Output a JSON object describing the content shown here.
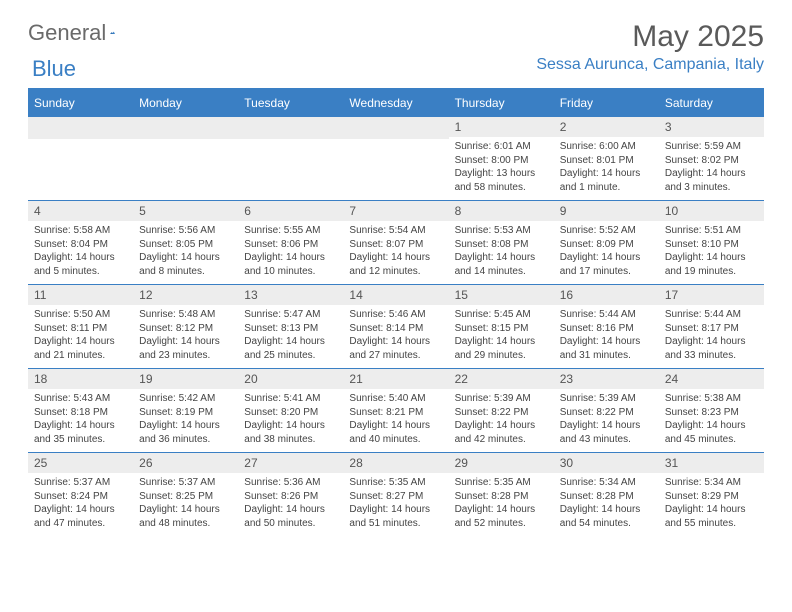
{
  "brand": {
    "part1": "General",
    "part2": "Blue"
  },
  "header": {
    "month_title": "May 2025",
    "location": "Sessa Aurunca, Campania, Italy"
  },
  "colors": {
    "accent": "#3a7fc4",
    "header_bg": "#3a7fc4",
    "daynum_bg": "#ededed",
    "text": "#444444"
  },
  "weekdays": [
    "Sunday",
    "Monday",
    "Tuesday",
    "Wednesday",
    "Thursday",
    "Friday",
    "Saturday"
  ],
  "grid": {
    "leading_blanks": 4,
    "days": [
      {
        "n": 1,
        "sunrise": "6:01 AM",
        "sunset": "8:00 PM",
        "daylight": "13 hours and 58 minutes."
      },
      {
        "n": 2,
        "sunrise": "6:00 AM",
        "sunset": "8:01 PM",
        "daylight": "14 hours and 1 minute."
      },
      {
        "n": 3,
        "sunrise": "5:59 AM",
        "sunset": "8:02 PM",
        "daylight": "14 hours and 3 minutes."
      },
      {
        "n": 4,
        "sunrise": "5:58 AM",
        "sunset": "8:04 PM",
        "daylight": "14 hours and 5 minutes."
      },
      {
        "n": 5,
        "sunrise": "5:56 AM",
        "sunset": "8:05 PM",
        "daylight": "14 hours and 8 minutes."
      },
      {
        "n": 6,
        "sunrise": "5:55 AM",
        "sunset": "8:06 PM",
        "daylight": "14 hours and 10 minutes."
      },
      {
        "n": 7,
        "sunrise": "5:54 AM",
        "sunset": "8:07 PM",
        "daylight": "14 hours and 12 minutes."
      },
      {
        "n": 8,
        "sunrise": "5:53 AM",
        "sunset": "8:08 PM",
        "daylight": "14 hours and 14 minutes."
      },
      {
        "n": 9,
        "sunrise": "5:52 AM",
        "sunset": "8:09 PM",
        "daylight": "14 hours and 17 minutes."
      },
      {
        "n": 10,
        "sunrise": "5:51 AM",
        "sunset": "8:10 PM",
        "daylight": "14 hours and 19 minutes."
      },
      {
        "n": 11,
        "sunrise": "5:50 AM",
        "sunset": "8:11 PM",
        "daylight": "14 hours and 21 minutes."
      },
      {
        "n": 12,
        "sunrise": "5:48 AM",
        "sunset": "8:12 PM",
        "daylight": "14 hours and 23 minutes."
      },
      {
        "n": 13,
        "sunrise": "5:47 AM",
        "sunset": "8:13 PM",
        "daylight": "14 hours and 25 minutes."
      },
      {
        "n": 14,
        "sunrise": "5:46 AM",
        "sunset": "8:14 PM",
        "daylight": "14 hours and 27 minutes."
      },
      {
        "n": 15,
        "sunrise": "5:45 AM",
        "sunset": "8:15 PM",
        "daylight": "14 hours and 29 minutes."
      },
      {
        "n": 16,
        "sunrise": "5:44 AM",
        "sunset": "8:16 PM",
        "daylight": "14 hours and 31 minutes."
      },
      {
        "n": 17,
        "sunrise": "5:44 AM",
        "sunset": "8:17 PM",
        "daylight": "14 hours and 33 minutes."
      },
      {
        "n": 18,
        "sunrise": "5:43 AM",
        "sunset": "8:18 PM",
        "daylight": "14 hours and 35 minutes."
      },
      {
        "n": 19,
        "sunrise": "5:42 AM",
        "sunset": "8:19 PM",
        "daylight": "14 hours and 36 minutes."
      },
      {
        "n": 20,
        "sunrise": "5:41 AM",
        "sunset": "8:20 PM",
        "daylight": "14 hours and 38 minutes."
      },
      {
        "n": 21,
        "sunrise": "5:40 AM",
        "sunset": "8:21 PM",
        "daylight": "14 hours and 40 minutes."
      },
      {
        "n": 22,
        "sunrise": "5:39 AM",
        "sunset": "8:22 PM",
        "daylight": "14 hours and 42 minutes."
      },
      {
        "n": 23,
        "sunrise": "5:39 AM",
        "sunset": "8:22 PM",
        "daylight": "14 hours and 43 minutes."
      },
      {
        "n": 24,
        "sunrise": "5:38 AM",
        "sunset": "8:23 PM",
        "daylight": "14 hours and 45 minutes."
      },
      {
        "n": 25,
        "sunrise": "5:37 AM",
        "sunset": "8:24 PM",
        "daylight": "14 hours and 47 minutes."
      },
      {
        "n": 26,
        "sunrise": "5:37 AM",
        "sunset": "8:25 PM",
        "daylight": "14 hours and 48 minutes."
      },
      {
        "n": 27,
        "sunrise": "5:36 AM",
        "sunset": "8:26 PM",
        "daylight": "14 hours and 50 minutes."
      },
      {
        "n": 28,
        "sunrise": "5:35 AM",
        "sunset": "8:27 PM",
        "daylight": "14 hours and 51 minutes."
      },
      {
        "n": 29,
        "sunrise": "5:35 AM",
        "sunset": "8:28 PM",
        "daylight": "14 hours and 52 minutes."
      },
      {
        "n": 30,
        "sunrise": "5:34 AM",
        "sunset": "8:28 PM",
        "daylight": "14 hours and 54 minutes."
      },
      {
        "n": 31,
        "sunrise": "5:34 AM",
        "sunset": "8:29 PM",
        "daylight": "14 hours and 55 minutes."
      }
    ]
  },
  "labels": {
    "sunrise_prefix": "Sunrise: ",
    "sunset_prefix": "Sunset: ",
    "daylight_prefix": "Daylight: "
  }
}
